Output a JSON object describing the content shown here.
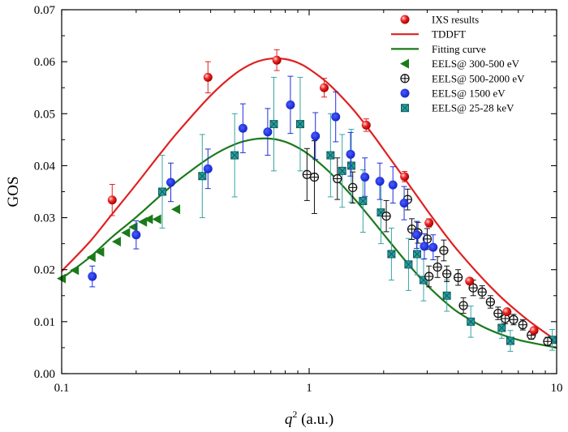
{
  "chart_data": {
    "type": "scatter",
    "xlabel": "q",
    "xlabel_sup": "2",
    "xlabel_unit": " (a.u.)",
    "ylabel": "GOS",
    "xscale": "log",
    "xlim": [
      0.1,
      10
    ],
    "ylim": [
      0.0,
      0.07
    ],
    "grid": false,
    "legend_position": "top-right",
    "x_ticks": [
      {
        "value": 0.1,
        "label": "0.1"
      },
      {
        "value": 1,
        "label": "1"
      },
      {
        "value": 10,
        "label": "10"
      }
    ],
    "y_ticks": [
      {
        "value": 0.0,
        "label": "0.00"
      },
      {
        "value": 0.01,
        "label": "0.01"
      },
      {
        "value": 0.02,
        "label": "0.02"
      },
      {
        "value": 0.03,
        "label": "0.03"
      },
      {
        "value": 0.04,
        "label": "0.04"
      },
      {
        "value": 0.05,
        "label": "0.05"
      },
      {
        "value": 0.06,
        "label": "0.06"
      },
      {
        "value": 0.07,
        "label": "0.07"
      }
    ],
    "series": [
      {
        "name": "IXS results",
        "kind": "marker",
        "marker": "sphere",
        "color": "#e02020",
        "points": [
          {
            "x": 0.16,
            "y": 0.0334,
            "err": 0.003
          },
          {
            "x": 0.39,
            "y": 0.057,
            "err": 0.003
          },
          {
            "x": 0.74,
            "y": 0.0603,
            "err": 0.002
          },
          {
            "x": 1.15,
            "y": 0.055,
            "err": 0.0018
          },
          {
            "x": 1.7,
            "y": 0.0478,
            "err": 0.0012
          },
          {
            "x": 2.43,
            "y": 0.0379,
            "err": 0.001
          },
          {
            "x": 3.05,
            "y": 0.029,
            "err": 0.0008
          },
          {
            "x": 4.45,
            "y": 0.0178,
            "err": 0.0006
          },
          {
            "x": 6.3,
            "y": 0.0119,
            "err": 0.0005
          },
          {
            "x": 8.1,
            "y": 0.0083,
            "err": 0.0004
          }
        ]
      },
      {
        "name": "TDDFT",
        "kind": "line",
        "color": "#e02020",
        "x": [
          0.1,
          0.13,
          0.16,
          0.2,
          0.25,
          0.3,
          0.4,
          0.5,
          0.6,
          0.7,
          0.8,
          0.9,
          1.0,
          1.2,
          1.5,
          1.8,
          2.0,
          2.5,
          3.0,
          3.5,
          4.0,
          5.0,
          6.0,
          7.0,
          8.0,
          10.0
        ],
        "y": [
          0.0197,
          0.0254,
          0.0307,
          0.0364,
          0.0423,
          0.0469,
          0.0535,
          0.0576,
          0.0598,
          0.0606,
          0.0605,
          0.0598,
          0.0586,
          0.0557,
          0.0509,
          0.0461,
          0.0431,
          0.0367,
          0.0314,
          0.0271,
          0.0236,
          0.0184,
          0.0146,
          0.0118,
          0.0096,
          0.0063
        ]
      },
      {
        "name": "Fitting curve",
        "kind": "line",
        "color": "#1a7a1a",
        "x": [
          0.1,
          0.13,
          0.16,
          0.2,
          0.25,
          0.3,
          0.4,
          0.5,
          0.6,
          0.7,
          0.8,
          0.9,
          1.0,
          1.2,
          1.5,
          1.8,
          2.0,
          2.5,
          3.0,
          3.5,
          4.0,
          5.0,
          6.0,
          7.0,
          8.0,
          10.0
        ],
        "y": [
          0.0183,
          0.0224,
          0.0263,
          0.0301,
          0.0342,
          0.0374,
          0.0417,
          0.0441,
          0.0451,
          0.0452,
          0.0446,
          0.0435,
          0.0421,
          0.0389,
          0.034,
          0.0295,
          0.0268,
          0.0212,
          0.017,
          0.014,
          0.0118,
          0.0091,
          0.0075,
          0.0065,
          0.0059,
          0.005
        ]
      },
      {
        "name": "EELS@ 300-500 eV",
        "kind": "marker",
        "marker": "triangle-left",
        "color": "#1a7a1a",
        "points": [
          {
            "x": 0.1,
            "y": 0.0183
          },
          {
            "x": 0.113,
            "y": 0.0199
          },
          {
            "x": 0.132,
            "y": 0.0224
          },
          {
            "x": 0.143,
            "y": 0.0234
          },
          {
            "x": 0.167,
            "y": 0.0254
          },
          {
            "x": 0.182,
            "y": 0.0271
          },
          {
            "x": 0.195,
            "y": 0.0282
          },
          {
            "x": 0.213,
            "y": 0.0292
          },
          {
            "x": 0.225,
            "y": 0.0297
          },
          {
            "x": 0.243,
            "y": 0.0297
          },
          {
            "x": 0.29,
            "y": 0.0316
          }
        ]
      },
      {
        "name": "EELS@ 500-2000 eV",
        "kind": "marker",
        "marker": "circle-plus",
        "color": "#111111",
        "points": [
          {
            "x": 0.98,
            "y": 0.0383,
            "err": 0.005
          },
          {
            "x": 1.05,
            "y": 0.0378,
            "err": 0.007
          },
          {
            "x": 1.3,
            "y": 0.0375,
            "err": 0.004
          },
          {
            "x": 1.5,
            "y": 0.0358,
            "err": 0.003
          },
          {
            "x": 2.05,
            "y": 0.0303,
            "err": 0.003
          },
          {
            "x": 2.5,
            "y": 0.0335,
            "err": 0.002
          },
          {
            "x": 2.6,
            "y": 0.0278,
            "err": 0.002
          },
          {
            "x": 2.75,
            "y": 0.0271,
            "err": 0.002
          },
          {
            "x": 3.0,
            "y": 0.0259,
            "err": 0.002
          },
          {
            "x": 3.05,
            "y": 0.0187,
            "err": 0.002
          },
          {
            "x": 3.3,
            "y": 0.0205,
            "err": 0.002
          },
          {
            "x": 3.5,
            "y": 0.0237,
            "err": 0.002
          },
          {
            "x": 3.6,
            "y": 0.0192,
            "err": 0.0015
          },
          {
            "x": 4.0,
            "y": 0.0185,
            "err": 0.0015
          },
          {
            "x": 4.2,
            "y": 0.0131,
            "err": 0.0015
          },
          {
            "x": 4.6,
            "y": 0.0165,
            "err": 0.0015
          },
          {
            "x": 5.0,
            "y": 0.0157,
            "err": 0.0012
          },
          {
            "x": 5.4,
            "y": 0.0138,
            "err": 0.0012
          },
          {
            "x": 5.8,
            "y": 0.0116,
            "err": 0.0012
          },
          {
            "x": 6.2,
            "y": 0.0106,
            "err": 0.001
          },
          {
            "x": 6.7,
            "y": 0.0104,
            "err": 0.001
          },
          {
            "x": 7.3,
            "y": 0.0094,
            "err": 0.001
          },
          {
            "x": 7.9,
            "y": 0.0074,
            "err": 0.0008
          },
          {
            "x": 9.2,
            "y": 0.0062,
            "err": 0.0008
          }
        ]
      },
      {
        "name": "EELS@ 1500 eV",
        "kind": "marker",
        "marker": "circle",
        "color": "#1f2ee0",
        "points": [
          {
            "x": 0.133,
            "y": 0.0187,
            "err": 0.002
          },
          {
            "x": 0.2,
            "y": 0.0267,
            "err": 0.0027
          },
          {
            "x": 0.276,
            "y": 0.0368,
            "err": 0.0037
          },
          {
            "x": 0.39,
            "y": 0.0394,
            "err": 0.0038
          },
          {
            "x": 0.54,
            "y": 0.0472,
            "err": 0.0047
          },
          {
            "x": 0.68,
            "y": 0.0465,
            "err": 0.0045
          },
          {
            "x": 0.84,
            "y": 0.0517,
            "err": 0.0055
          },
          {
            "x": 1.06,
            "y": 0.0457,
            "err": 0.0045
          },
          {
            "x": 1.28,
            "y": 0.0494,
            "err": 0.0048
          },
          {
            "x": 1.47,
            "y": 0.0422,
            "err": 0.0042
          },
          {
            "x": 1.68,
            "y": 0.0378,
            "err": 0.0037
          },
          {
            "x": 1.93,
            "y": 0.037,
            "err": 0.0035
          },
          {
            "x": 2.18,
            "y": 0.0363,
            "err": 0.0035
          },
          {
            "x": 2.42,
            "y": 0.0328,
            "err": 0.0032
          },
          {
            "x": 2.72,
            "y": 0.0267,
            "err": 0.0026
          },
          {
            "x": 2.92,
            "y": 0.0245,
            "err": 0.0024
          },
          {
            "x": 3.17,
            "y": 0.0243,
            "err": 0.0024
          }
        ]
      },
      {
        "name": "EELS@ 25-28 keV",
        "kind": "marker",
        "marker": "square-x",
        "color": "#1f8a8a",
        "points": [
          {
            "x": 0.255,
            "y": 0.035,
            "err": 0.007
          },
          {
            "x": 0.37,
            "y": 0.038,
            "err": 0.008
          },
          {
            "x": 0.5,
            "y": 0.042,
            "err": 0.008
          },
          {
            "x": 0.72,
            "y": 0.048,
            "err": 0.009
          },
          {
            "x": 0.92,
            "y": 0.048,
            "err": 0.009
          },
          {
            "x": 1.22,
            "y": 0.042,
            "err": 0.008
          },
          {
            "x": 1.36,
            "y": 0.039,
            "err": 0.007
          },
          {
            "x": 1.48,
            "y": 0.04,
            "err": 0.007
          },
          {
            "x": 1.65,
            "y": 0.0332,
            "err": 0.006
          },
          {
            "x": 1.95,
            "y": 0.031,
            "err": 0.006
          },
          {
            "x": 2.15,
            "y": 0.023,
            "err": 0.005
          },
          {
            "x": 2.52,
            "y": 0.021,
            "err": 0.005
          },
          {
            "x": 2.73,
            "y": 0.023,
            "err": 0.004
          },
          {
            "x": 2.9,
            "y": 0.018,
            "err": 0.004
          },
          {
            "x": 3.6,
            "y": 0.015,
            "err": 0.003
          },
          {
            "x": 4.5,
            "y": 0.01,
            "err": 0.003
          },
          {
            "x": 6.0,
            "y": 0.0088,
            "err": 0.002
          },
          {
            "x": 6.5,
            "y": 0.0063,
            "err": 0.002
          },
          {
            "x": 9.6,
            "y": 0.0065,
            "err": 0.002
          }
        ]
      }
    ]
  }
}
